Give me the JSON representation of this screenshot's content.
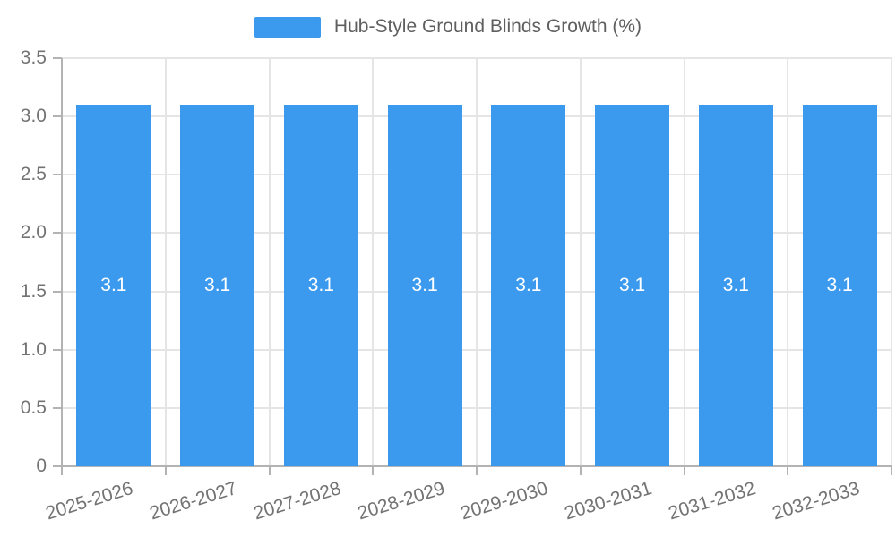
{
  "legend": {
    "label": "Hub-Style Ground Blinds Growth (%)"
  },
  "colors": {
    "bar": "#3B9AEE",
    "grid": "#e5e5e5",
    "axis": "#b3b3b3",
    "tick_text": "#737373",
    "legend_text": "#5f5f5f",
    "bar_label_text": "#ffffff"
  },
  "chart_data": {
    "type": "bar",
    "title": "Hub-Style Ground Blinds Growth (%)",
    "categories": [
      "2025-2026",
      "2026-2027",
      "2027-2028",
      "2028-2029",
      "2029-2030",
      "2030-2031",
      "2031-2032",
      "2032-2033"
    ],
    "series": [
      {
        "name": "Hub-Style Ground Blinds Growth (%)",
        "values": [
          3.1,
          3.1,
          3.1,
          3.1,
          3.1,
          3.1,
          3.1,
          3.1
        ],
        "bar_labels": [
          "3.1",
          "3.1",
          "3.1",
          "3.1",
          "3.1",
          "3.1",
          "3.1",
          "3.1"
        ]
      }
    ],
    "xlabel": "",
    "ylabel": "",
    "ylim": [
      0,
      3.5
    ],
    "yticks": [
      0,
      0.5,
      1.0,
      1.5,
      2.0,
      2.5,
      3.0,
      3.5
    ],
    "ytick_labels": [
      "0",
      "0.5",
      "1.0",
      "1.5",
      "2.0",
      "2.5",
      "3.0",
      "3.5"
    ],
    "grid": "on",
    "legend_position": "top-center",
    "value_labels": "inside-center"
  }
}
